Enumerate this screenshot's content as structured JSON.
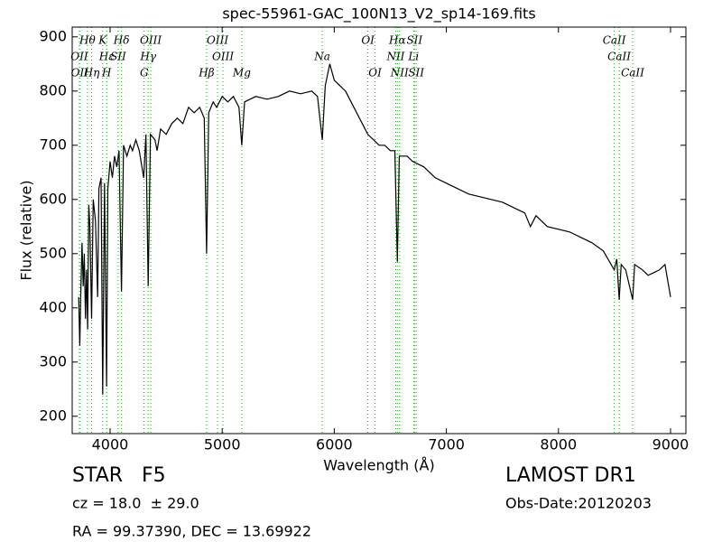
{
  "chart_data": {
    "type": "line",
    "title": "spec-55961-GAC_100N13_V2_sp14-169.fits",
    "x_label": "Wavelength (Å)",
    "y_label": "Flux (relative)",
    "xlim": [
      3662,
      9137
    ],
    "ylim": [
      168,
      918
    ],
    "xticks": [
      4000,
      5000,
      6000,
      7000,
      8000,
      9000
    ],
    "yticks": [
      200,
      300,
      400,
      500,
      600,
      700,
      800,
      900
    ],
    "color": "#000000",
    "line_color": "#2ca02c",
    "x": [
      3720,
      3730,
      3740,
      3750,
      3760,
      3770,
      3780,
      3790,
      3800,
      3810,
      3820,
      3835,
      3850,
      3870,
      3889,
      3900,
      3920,
      3934,
      3950,
      3969,
      3980,
      4000,
      4020,
      4040,
      4060,
      4080,
      4102,
      4120,
      4150,
      4180,
      4200,
      4230,
      4260,
      4300,
      4320,
      4340,
      4360,
      4400,
      4420,
      4450,
      4500,
      4550,
      4600,
      4650,
      4700,
      4750,
      4800,
      4840,
      4861,
      4880,
      4920,
      4950,
      5000,
      5050,
      5100,
      5150,
      5175,
      5200,
      5300,
      5400,
      5500,
      5600,
      5700,
      5800,
      5850,
      5893,
      5920,
      5960,
      6000,
      6050,
      6100,
      6150,
      6200,
      6250,
      6300,
      6350,
      6400,
      6450,
      6500,
      6540,
      6563,
      6580,
      6650,
      6700,
      6800,
      6900,
      7000,
      7100,
      7200,
      7300,
      7400,
      7500,
      7600,
      7700,
      7750,
      7800,
      7900,
      8000,
      8100,
      8200,
      8300,
      8400,
      8498,
      8520,
      8542,
      8560,
      8600,
      8662,
      8680,
      8750,
      8800,
      8850,
      8900,
      8950,
      9000
    ],
    "values": [
      420,
      330,
      440,
      520,
      440,
      500,
      380,
      470,
      360,
      590,
      550,
      380,
      600,
      560,
      420,
      620,
      640,
      240,
      630,
      255,
      620,
      670,
      640,
      680,
      660,
      690,
      430,
      700,
      680,
      700,
      690,
      710,
      690,
      640,
      720,
      440,
      720,
      710,
      690,
      730,
      720,
      740,
      750,
      740,
      770,
      760,
      770,
      750,
      500,
      760,
      780,
      770,
      790,
      780,
      790,
      770,
      700,
      780,
      790,
      785,
      790,
      800,
      795,
      800,
      790,
      710,
      810,
      850,
      820,
      810,
      800,
      780,
      760,
      740,
      720,
      710,
      700,
      700,
      690,
      690,
      485,
      680,
      680,
      670,
      660,
      640,
      630,
      620,
      610,
      605,
      600,
      595,
      585,
      575,
      550,
      570,
      550,
      545,
      540,
      530,
      520,
      505,
      470,
      490,
      415,
      480,
      470,
      415,
      480,
      470,
      460,
      465,
      470,
      480,
      420
    ],
    "spectral_lines": [
      {
        "label": "OII",
        "wavelength": 3726
      },
      {
        "label": "OII",
        "wavelength": 3729
      },
      {
        "label": "Hθ",
        "wavelength": 3798
      },
      {
        "label": "Hη",
        "wavelength": 3835
      },
      {
        "label": "K",
        "wavelength": 3934
      },
      {
        "label": "Hε",
        "wavelength": 3970
      },
      {
        "label": "H",
        "wavelength": 3969
      },
      {
        "label": "SII",
        "wavelength": 4072
      },
      {
        "label": "Hδ",
        "wavelength": 4102
      },
      {
        "label": "G",
        "wavelength": 4304
      },
      {
        "label": "Hγ",
        "wavelength": 4340
      },
      {
        "label": "OIII",
        "wavelength": 4363
      },
      {
        "label": "Hβ",
        "wavelength": 4861
      },
      {
        "label": "OIII",
        "wavelength": 4959
      },
      {
        "label": "OIII",
        "wavelength": 5007
      },
      {
        "label": "Mg",
        "wavelength": 5175
      },
      {
        "label": "Na",
        "wavelength": 5893
      },
      {
        "label": "OI",
        "wavelength": 6300
      },
      {
        "label": "OI",
        "wavelength": 6364
      },
      {
        "label": "NII",
        "wavelength": 6548
      },
      {
        "label": "Hα",
        "wavelength": 6563
      },
      {
        "label": "NII",
        "wavelength": 6583
      },
      {
        "label": "Li",
        "wavelength": 6708
      },
      {
        "label": "SII",
        "wavelength": 6716
      },
      {
        "label": "SII",
        "wavelength": 6731
      },
      {
        "label": "CaII",
        "wavelength": 8498
      },
      {
        "label": "CaII",
        "wavelength": 8542
      },
      {
        "label": "CaII",
        "wavelength": 8662
      }
    ],
    "object_class": "STAR   F5",
    "redshift": "cz = 18.0  ± 29.0",
    "coordinates": "RA = 99.37390, DEC = 13.69922",
    "survey": "LAMOST DR1",
    "obs_date": "Obs-Date:20120203"
  }
}
